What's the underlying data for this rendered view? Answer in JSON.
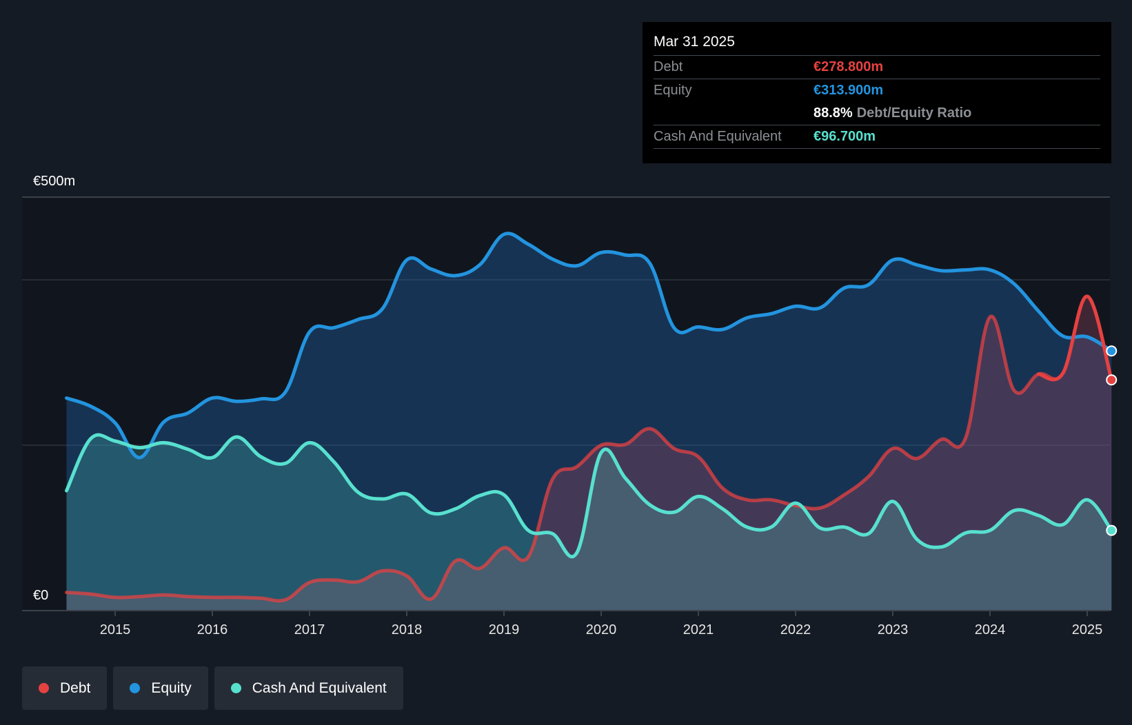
{
  "chart_data": {
    "type": "area",
    "title": "",
    "xlabel": "",
    "ylabel": "",
    "ylim": [
      0,
      500
    ],
    "currency": "€",
    "y_ticks": [
      {
        "value": 500,
        "label": "€500m"
      },
      {
        "value": 0,
        "label": "€0"
      }
    ],
    "gridlines": [
      500,
      400,
      200,
      0
    ],
    "x_ticks": [
      2015,
      2016,
      2017,
      2018,
      2019,
      2020,
      2021,
      2022,
      2023,
      2024,
      2025
    ],
    "x_tick_labels": [
      "2015",
      "2016",
      "2017",
      "2018",
      "2019",
      "2020",
      "2021",
      "2022",
      "2023",
      "2024",
      "2025"
    ],
    "xlim": [
      2014.5,
      2025.25
    ],
    "series": [
      {
        "name": "Equity",
        "color": "#2394df",
        "x": [
          2014.5,
          2014.75,
          2015.0,
          2015.25,
          2015.5,
          2015.75,
          2016.0,
          2016.25,
          2016.5,
          2016.75,
          2017.0,
          2017.25,
          2017.5,
          2017.75,
          2018.0,
          2018.25,
          2018.5,
          2018.75,
          2019.0,
          2019.25,
          2019.5,
          2019.75,
          2020.0,
          2020.25,
          2020.5,
          2020.75,
          2021.0,
          2021.25,
          2021.5,
          2021.75,
          2022.0,
          2022.25,
          2022.5,
          2022.75,
          2023.0,
          2023.25,
          2023.5,
          2023.75,
          2024.0,
          2024.25,
          2024.5,
          2024.75,
          2025.0,
          2025.25
        ],
        "values": [
          257,
          247,
          227,
          185,
          228,
          239,
          257,
          253,
          256,
          264,
          337,
          342,
          352,
          365,
          424,
          413,
          405,
          418,
          455,
          443,
          425,
          417,
          433,
          430,
          420,
          342,
          343,
          340,
          354,
          359,
          368,
          366,
          390,
          394,
          424,
          418,
          411,
          412,
          412,
          395,
          362,
          332,
          331,
          314
        ]
      },
      {
        "name": "Debt",
        "color": "#e64141",
        "x": [
          2014.5,
          2014.75,
          2015.0,
          2015.25,
          2015.5,
          2015.75,
          2016.0,
          2016.25,
          2016.5,
          2016.75,
          2017.0,
          2017.25,
          2017.5,
          2017.75,
          2018.0,
          2018.25,
          2018.5,
          2018.75,
          2019.0,
          2019.25,
          2019.5,
          2019.75,
          2020.0,
          2020.25,
          2020.5,
          2020.75,
          2021.0,
          2021.25,
          2021.5,
          2021.75,
          2022.0,
          2022.25,
          2022.5,
          2022.75,
          2023.0,
          2023.25,
          2023.5,
          2023.75,
          2024.0,
          2024.25,
          2024.5,
          2024.75,
          2025.0,
          2025.25
        ],
        "values": [
          22,
          20,
          16,
          17,
          19,
          17,
          16,
          16,
          15,
          13,
          34,
          37,
          35,
          48,
          42,
          14,
          60,
          51,
          76,
          65,
          159,
          174,
          200,
          201,
          220,
          196,
          186,
          148,
          134,
          134,
          127,
          124,
          140,
          162,
          196,
          184,
          207,
          209,
          355,
          266,
          286,
          287,
          380,
          279
        ]
      },
      {
        "name": "Cash And Equivalent",
        "color": "#58e0cf",
        "x": [
          2014.5,
          2014.75,
          2015.0,
          2015.25,
          2015.5,
          2015.75,
          2016.0,
          2016.25,
          2016.5,
          2016.75,
          2017.0,
          2017.25,
          2017.5,
          2017.75,
          2018.0,
          2018.25,
          2018.5,
          2018.75,
          2019.0,
          2019.25,
          2019.5,
          2019.75,
          2020.0,
          2020.25,
          2020.5,
          2020.75,
          2021.0,
          2021.25,
          2021.5,
          2021.75,
          2022.0,
          2022.25,
          2022.5,
          2022.75,
          2023.0,
          2023.25,
          2023.5,
          2023.75,
          2024.0,
          2024.25,
          2024.5,
          2024.75,
          2025.0,
          2025.25
        ],
        "values": [
          145,
          208,
          205,
          197,
          203,
          195,
          185,
          210,
          186,
          178,
          203,
          180,
          143,
          135,
          141,
          118,
          123,
          139,
          140,
          97,
          93,
          70,
          191,
          160,
          128,
          119,
          138,
          123,
          101,
          101,
          130,
          100,
          101,
          93,
          132,
          86,
          77,
          94,
          97,
          121,
          115,
          104,
          134,
          97
        ]
      }
    ],
    "tooltip": {
      "date": "Mar 31 2025",
      "rows": [
        {
          "label": "Debt",
          "value": "€278.800m",
          "color": "#e64141"
        },
        {
          "label": "Equity",
          "value": "€313.900m",
          "color": "#2394df"
        },
        {
          "ratio": "88.8%",
          "ratio_label": "Debt/Equity Ratio"
        },
        {
          "label": "Cash And Equivalent",
          "value": "€96.700m",
          "color": "#58e0cf"
        }
      ]
    },
    "legend": [
      {
        "label": "Debt",
        "color": "#e64141"
      },
      {
        "label": "Equity",
        "color": "#2394df"
      },
      {
        "label": "Cash And Equivalent",
        "color": "#58e0cf"
      }
    ]
  }
}
